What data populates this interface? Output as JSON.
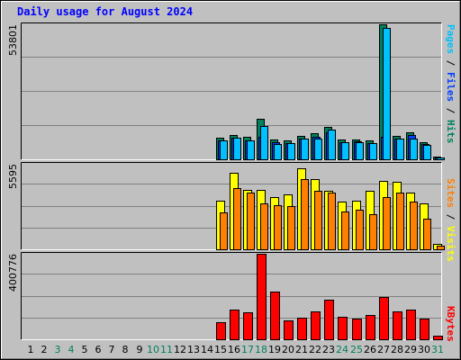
{
  "title": "Daily usage for August 2024",
  "panels": {
    "hits": {
      "max_label": "53801",
      "legend": [
        "Pages",
        "Files",
        "Hits"
      ]
    },
    "visits": {
      "max_label": "5595",
      "legend": [
        "Sites",
        "Visits"
      ]
    },
    "kbytes": {
      "max_label": "400776",
      "legend": [
        "KBytes"
      ]
    }
  },
  "colors": {
    "hits": "#00805c",
    "files": "#0040ff",
    "pages": "#00c0ff",
    "visits": "#ffff00",
    "sites": "#ff8000",
    "kbytes": "#ff0000",
    "weekday": "#000000",
    "weekend": "#00805c",
    "plot_bg": "#c0c0c0",
    "grid": "#808080",
    "title": "#0000ff"
  },
  "chart_data": [
    {
      "type": "bar",
      "name": "hits-files-pages",
      "categories": [
        "1",
        "2",
        "3",
        "4",
        "5",
        "6",
        "7",
        "8",
        "9",
        "10",
        "11",
        "12",
        "13",
        "14",
        "15",
        "16",
        "17",
        "18",
        "19",
        "20",
        "21",
        "22",
        "23",
        "24",
        "25",
        "26",
        "27",
        "28",
        "29",
        "30",
        "31"
      ],
      "ylim": [
        0,
        53801
      ],
      "grid": true,
      "legend": "right",
      "series": [
        {
          "name": "Hits",
          "values": [
            0,
            0,
            0,
            0,
            0,
            0,
            0,
            0,
            0,
            0,
            0,
            0,
            0,
            0,
            8600,
            9600,
            9000,
            16300,
            8000,
            7500,
            9200,
            10300,
            12900,
            7900,
            7900,
            7600,
            53800,
            9500,
            10900,
            6700,
            1200
          ]
        },
        {
          "name": "Files",
          "values": [
            0,
            0,
            0,
            0,
            0,
            0,
            0,
            0,
            0,
            0,
            0,
            0,
            0,
            0,
            7500,
            8500,
            7700,
            8800,
            6700,
            6500,
            8200,
            9000,
            10700,
            6800,
            7000,
            6500,
            8800,
            8400,
            9700,
            6200,
            800
          ]
        },
        {
          "name": "Pages",
          "values": [
            0,
            0,
            0,
            0,
            0,
            0,
            0,
            0,
            0,
            0,
            0,
            0,
            0,
            0,
            7600,
            8500,
            7500,
            13300,
            6200,
            6300,
            8400,
            8400,
            12000,
            6800,
            6700,
            6600,
            52400,
            8200,
            8400,
            5800,
            800
          ]
        }
      ]
    },
    {
      "type": "bar",
      "name": "visits-sites",
      "categories": [
        "1",
        "2",
        "3",
        "4",
        "5",
        "6",
        "7",
        "8",
        "9",
        "10",
        "11",
        "12",
        "13",
        "14",
        "15",
        "16",
        "17",
        "18",
        "19",
        "20",
        "21",
        "22",
        "23",
        "24",
        "25",
        "26",
        "27",
        "28",
        "29",
        "30",
        "31"
      ],
      "ylim": [
        0,
        5595
      ],
      "grid": true,
      "legend": "right",
      "series": [
        {
          "name": "Visits",
          "values": [
            0,
            0,
            0,
            0,
            0,
            0,
            0,
            0,
            0,
            0,
            0,
            0,
            0,
            0,
            3200,
            5000,
            3900,
            3900,
            3400,
            3600,
            5300,
            4600,
            3800,
            3100,
            3200,
            3800,
            4500,
            4400,
            3700,
            3000,
            350
          ]
        },
        {
          "name": "Sites",
          "values": [
            0,
            0,
            0,
            0,
            0,
            0,
            0,
            0,
            0,
            0,
            0,
            0,
            0,
            0,
            2400,
            4000,
            3700,
            3000,
            2900,
            2800,
            4600,
            3800,
            3700,
            2500,
            2600,
            2300,
            3400,
            3700,
            3100,
            2000,
            250
          ]
        }
      ]
    },
    {
      "type": "bar",
      "name": "kbytes",
      "categories": [
        "1",
        "2",
        "3",
        "4",
        "5",
        "6",
        "7",
        "8",
        "9",
        "10",
        "11",
        "12",
        "13",
        "14",
        "15",
        "16",
        "17",
        "18",
        "19",
        "20",
        "21",
        "22",
        "23",
        "24",
        "25",
        "26",
        "27",
        "28",
        "29",
        "30",
        "31"
      ],
      "ylim": [
        0,
        400776
      ],
      "grid": true,
      "legend": "right",
      "series": [
        {
          "name": "KBytes",
          "values": [
            0,
            0,
            0,
            0,
            0,
            0,
            0,
            0,
            0,
            0,
            0,
            0,
            0,
            0,
            80000,
            139000,
            127000,
            401000,
            223000,
            87000,
            103000,
            132000,
            184000,
            104000,
            97000,
            116000,
            198000,
            131000,
            139000,
            97000,
            18000
          ]
        }
      ]
    }
  ],
  "weekend_days": [
    "3",
    "4",
    "10",
    "11",
    "17",
    "18",
    "24",
    "25",
    "31"
  ]
}
